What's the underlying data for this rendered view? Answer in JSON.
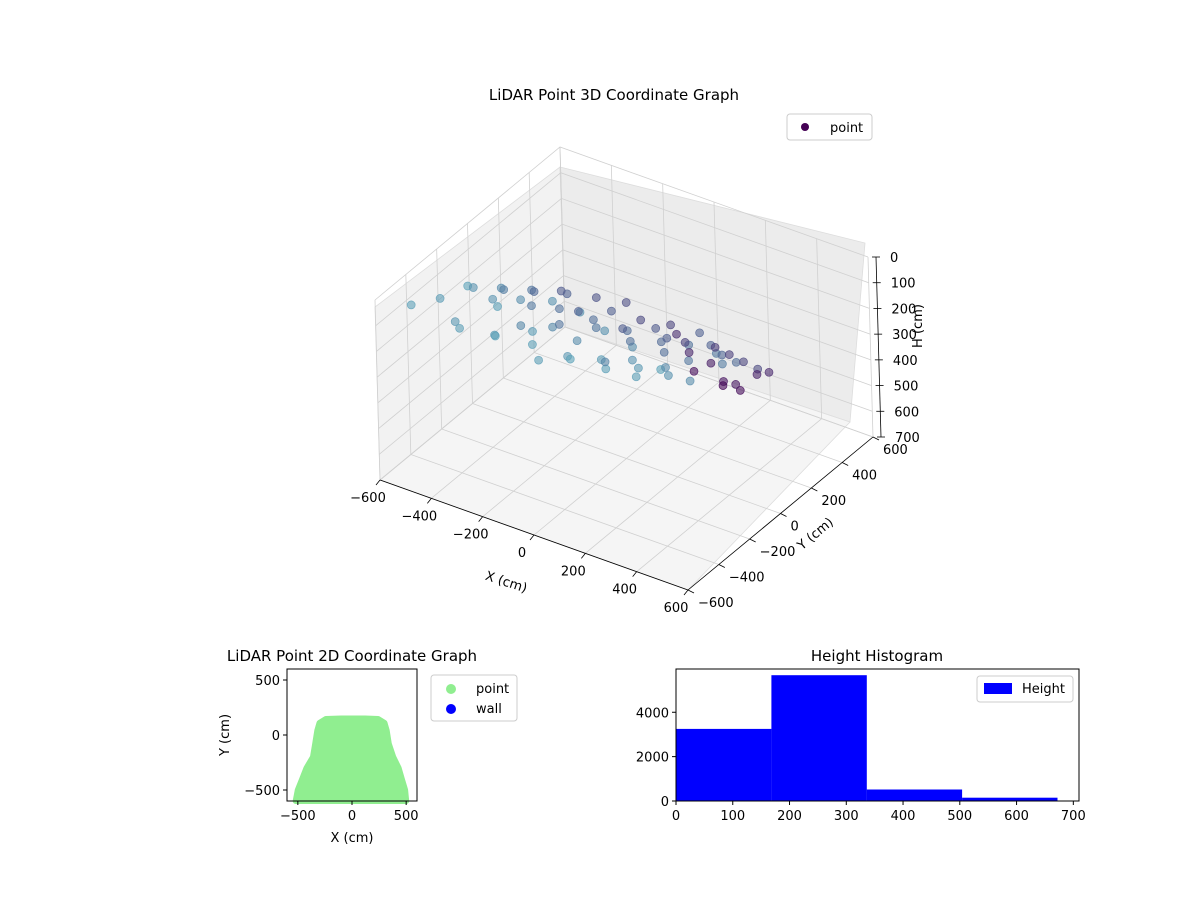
{
  "chart_data": [
    {
      "type": "scatter",
      "title": "LiDAR Point 3D Coordinate Graph",
      "xlabel": "X (cm)",
      "ylabel": "Y (cm)",
      "zlabel": "H (cm)",
      "xlim": [
        -600,
        600
      ],
      "ylim": [
        -600,
        600
      ],
      "zlim": [
        0,
        700
      ],
      "z_inverted": true,
      "x_ticks": [
        "−600",
        "−400",
        "−200",
        "0",
        "200",
        "400",
        "600"
      ],
      "y_ticks": [
        "−600",
        "−400",
        "−200",
        "0",
        "200",
        "400",
        "600"
      ],
      "z_ticks": [
        "0",
        "100",
        "200",
        "300",
        "400",
        "500",
        "600",
        "700"
      ],
      "grid": true,
      "legend": [
        "point"
      ],
      "legend_position": "top-right",
      "colormap": "viridis",
      "series": [
        {
          "name": "point",
          "points": [
            [
              -520,
              -500,
              40
            ],
            [
              -480,
              -380,
              60
            ],
            [
              -420,
              -300,
              30
            ],
            [
              -380,
              -450,
              80
            ],
            [
              -320,
              -520,
              50
            ],
            [
              -280,
              -340,
              40
            ],
            [
              -220,
              -460,
              70
            ],
            [
              -180,
              -520,
              30
            ],
            [
              -120,
              -380,
              60
            ],
            [
              -60,
              -480,
              40
            ],
            [
              0,
              -540,
              50
            ],
            [
              40,
              -420,
              80
            ],
            [
              100,
              -500,
              30
            ],
            [
              160,
              -400,
              60
            ],
            [
              220,
              -470,
              40
            ],
            [
              280,
              -360,
              70
            ],
            [
              320,
              -440,
              50
            ],
            [
              380,
              -380,
              30
            ],
            [
              -460,
              -200,
              100
            ],
            [
              -400,
              -120,
              120
            ],
            [
              -360,
              -240,
              90
            ],
            [
              -300,
              -160,
              110
            ],
            [
              -240,
              -260,
              140
            ],
            [
              -200,
              -120,
              100
            ],
            [
              -140,
              -220,
              130
            ],
            [
              -80,
              -140,
              90
            ],
            [
              -20,
              -260,
              120
            ],
            [
              40,
              -180,
              100
            ],
            [
              100,
              -280,
              150
            ],
            [
              160,
              -200,
              110
            ],
            [
              220,
              -300,
              90
            ],
            [
              300,
              -220,
              130
            ],
            [
              360,
              -300,
              100
            ],
            [
              420,
              -260,
              120
            ],
            [
              -440,
              -40,
              180
            ],
            [
              -380,
              40,
              200
            ],
            [
              -320,
              -60,
              190
            ],
            [
              -260,
              20,
              220
            ],
            [
              -200,
              -80,
              210
            ],
            [
              -140,
              40,
              230
            ],
            [
              -80,
              -40,
              200
            ],
            [
              -20,
              60,
              240
            ],
            [
              40,
              -20,
              220
            ],
            [
              100,
              80,
              250
            ],
            [
              160,
              0,
              230
            ],
            [
              220,
              60,
              210
            ],
            [
              280,
              -40,
              200
            ],
            [
              340,
              40,
              190
            ],
            [
              400,
              -20,
              180
            ],
            [
              -420,
              120,
              260
            ],
            [
              -340,
              200,
              280
            ],
            [
              -260,
              140,
              290
            ],
            [
              -180,
              220,
              300
            ],
            [
              -100,
              160,
              310
            ],
            [
              -20,
              240,
              320
            ],
            [
              60,
              180,
              300
            ],
            [
              140,
              260,
              290
            ],
            [
              220,
              200,
              280
            ],
            [
              300,
              140,
              260
            ],
            [
              380,
              100,
              240
            ],
            [
              -300,
              320,
              340
            ],
            [
              -220,
              380,
              360
            ],
            [
              -140,
              340,
              380
            ],
            [
              -60,
              400,
              400
            ],
            [
              20,
              360,
              420
            ],
            [
              100,
              420,
              440
            ],
            [
              180,
              380,
              420
            ],
            [
              260,
              340,
              400
            ],
            [
              340,
              300,
              380
            ],
            [
              -400,
              260,
              320
            ],
            [
              -100,
              500,
              500
            ],
            [
              -40,
              480,
              540
            ],
            [
              20,
              520,
              580
            ],
            [
              80,
              500,
              620
            ],
            [
              140,
              480,
              600
            ],
            [
              200,
              520,
              560
            ],
            [
              260,
              500,
              520
            ],
            [
              -60,
              540,
              650
            ],
            [
              40,
              560,
              680
            ],
            [
              120,
              540,
              660
            ]
          ]
        }
      ]
    },
    {
      "type": "scatter",
      "title": "LiDAR Point 2D Coordinate Graph",
      "xlabel": "X (cm)",
      "ylabel": "Y (cm)",
      "xlim": [
        -600,
        600
      ],
      "ylim": [
        -600,
        600
      ],
      "x_ticks": [
        "−500",
        "0",
        "500"
      ],
      "y_ticks": [
        "−500",
        "0",
        "500"
      ],
      "legend": [
        "point",
        "wall"
      ],
      "legend_position": "outside-right",
      "series": [
        {
          "name": "point",
          "color": "#90ee90",
          "boundary": [
            [
              -520,
              -600
            ],
            [
              -500,
              -500
            ],
            [
              -460,
              -400
            ],
            [
              -420,
              -300
            ],
            [
              -360,
              -200
            ],
            [
              -340,
              -80
            ],
            [
              -320,
              40
            ],
            [
              -300,
              110
            ],
            [
              -240,
              145
            ],
            [
              -100,
              150
            ],
            [
              0,
              150
            ],
            [
              120,
              150
            ],
            [
              240,
              145
            ],
            [
              300,
              110
            ],
            [
              320,
              40
            ],
            [
              340,
              -80
            ],
            [
              380,
              -200
            ],
            [
              430,
              -300
            ],
            [
              460,
              -400
            ],
            [
              490,
              -500
            ],
            [
              500,
              -600
            ]
          ]
        },
        {
          "name": "wall",
          "color": "#0000ff",
          "points": []
        }
      ]
    },
    {
      "type": "bar",
      "title": "Height Histogram",
      "xlabel": "",
      "ylabel": "",
      "xlim": [
        0,
        710
      ],
      "ylim": [
        0,
        5950
      ],
      "x_ticks": [
        "0",
        "100",
        "200",
        "300",
        "400",
        "500",
        "600",
        "700"
      ],
      "y_ticks": [
        "0",
        "2000",
        "4000"
      ],
      "bin_edges": [
        0,
        168,
        336,
        504,
        672
      ],
      "legend": [
        "Height"
      ],
      "legend_position": "top-right",
      "series": [
        {
          "name": "Height",
          "color": "#0000ff",
          "values": [
            3250,
            5670,
            520,
            150
          ]
        }
      ]
    }
  ]
}
